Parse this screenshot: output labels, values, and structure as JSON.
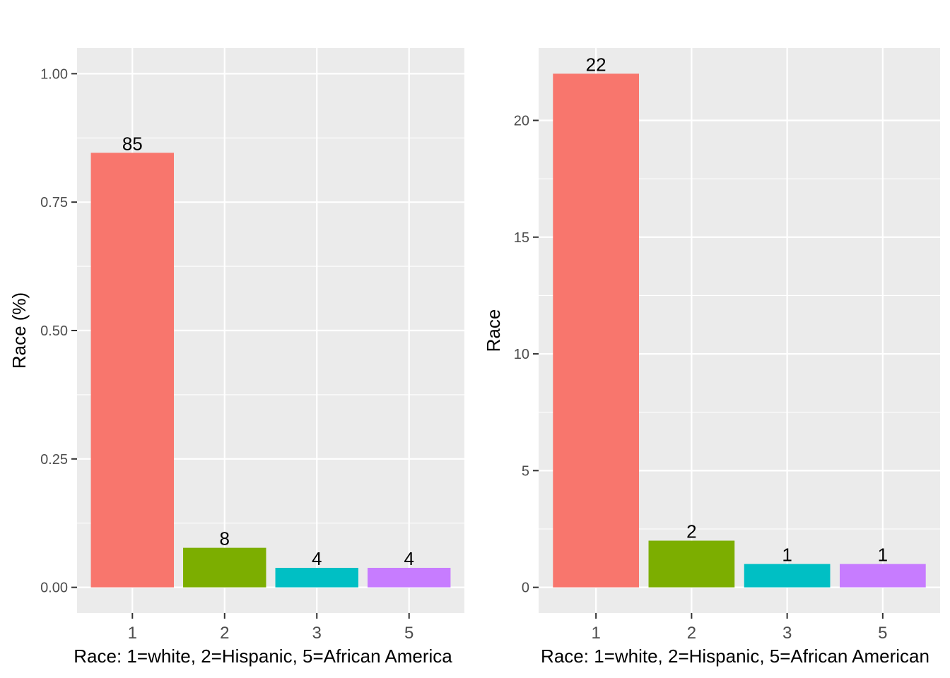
{
  "colors": {
    "panel_background": "#ebebeb",
    "grid_line": "#ffffff",
    "tick_mark": "#333333",
    "series": [
      "#f8766d",
      "#7cae00",
      "#00bfc4",
      "#c77cff"
    ]
  },
  "chart_data": [
    {
      "type": "bar",
      "categories": [
        "1",
        "2",
        "3",
        "5"
      ],
      "values": [
        0.846,
        0.077,
        0.038,
        0.038
      ],
      "data_labels": [
        "85",
        "8",
        "4",
        "4"
      ],
      "xlabel": "Race: 1=white, 2=Hispanic, 5=African America",
      "ylabel": "Race (%)",
      "ylim": [
        -0.05,
        1.05
      ],
      "yticks": [
        0,
        0.25,
        0.5,
        0.75,
        1
      ],
      "ytick_labels": [
        "0.00",
        "0.25",
        "0.50",
        "0.75",
        "1.00"
      ],
      "grid": true,
      "legend": "none"
    },
    {
      "type": "bar",
      "categories": [
        "1",
        "2",
        "3",
        "5"
      ],
      "values": [
        22,
        2,
        1,
        1
      ],
      "data_labels": [
        "22",
        "2",
        "1",
        "1"
      ],
      "xlabel": "Race: 1=white, 2=Hispanic, 5=African American",
      "ylabel": "Race",
      "ylim": [
        -1.1,
        23.1
      ],
      "yticks": [
        0,
        5,
        10,
        15,
        20
      ],
      "ytick_labels": [
        "0",
        "5",
        "10",
        "15",
        "20"
      ],
      "grid": true,
      "legend": "none"
    }
  ]
}
